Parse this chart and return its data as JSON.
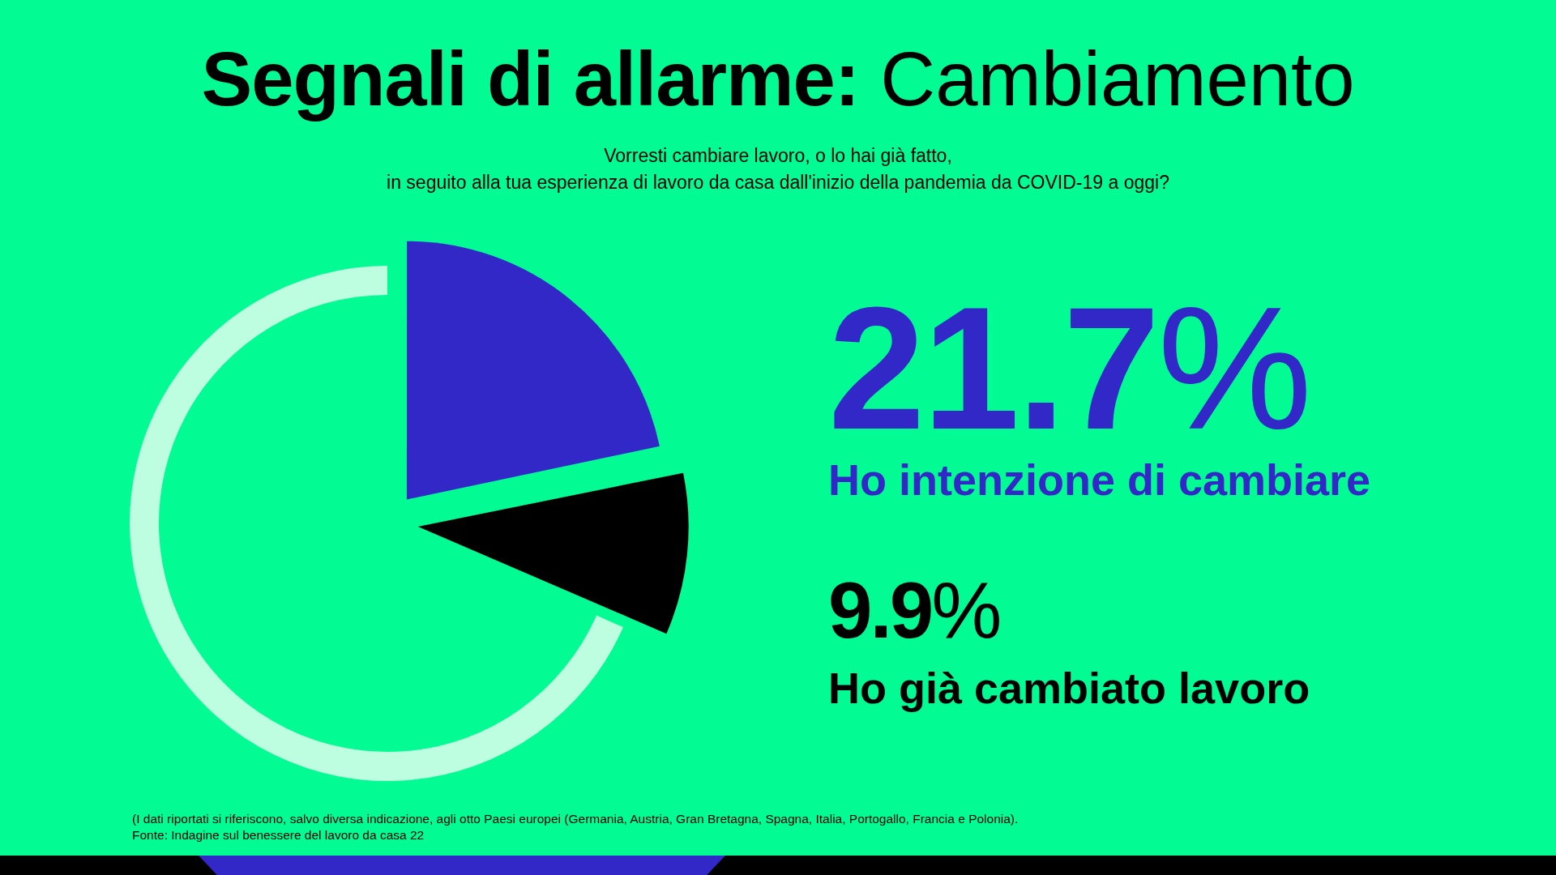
{
  "chart_data": {
    "type": "pie",
    "title": "Segnali di allarme: Cambiamento",
    "subtitle": "Vorresti cambiare lavoro, o lo hai già fatto,\nin seguito alla tua esperienza di lavoro da casa dall'inizio della pandemia da COVID-19 a oggi?",
    "categories": [
      "Ho intenzione di cambiare",
      "Ho già cambiato lavoro",
      null
    ],
    "values": [
      21.7,
      9.9,
      68.4
    ],
    "value_labels": [
      "21.7%",
      "9.9%",
      null
    ],
    "colors": [
      "#3228c8",
      "#000000",
      "#bdfde0"
    ],
    "annotations": [
      "(I dati riportati si riferiscono, salvo diversa indicazione, agli otto Paesi europei (Germania, Austria, Gran Bretagna, Spagna, Italia, Portogallo, Francia e Polonia).",
      "Fonte: Indagine sul benessere del lavoro da casa 22"
    ]
  }
}
